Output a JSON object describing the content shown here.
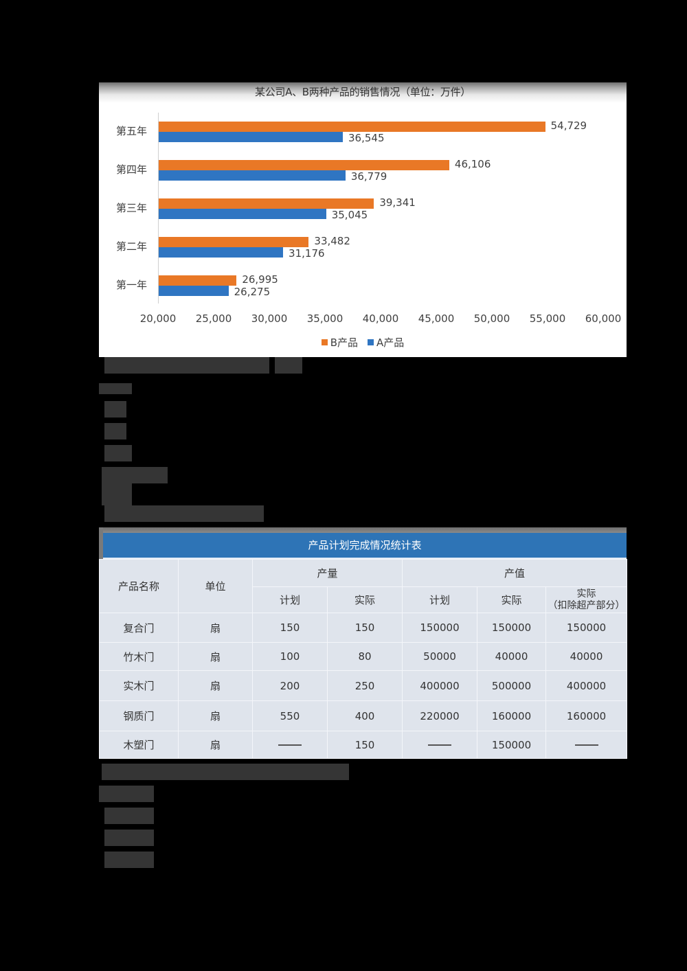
{
  "chart_data": {
    "type": "bar",
    "orientation": "horizontal",
    "title": "某公司A、B两种产品的销售情况（单位：万件）",
    "categories": [
      "第五年",
      "第四年",
      "第三年",
      "第二年",
      "第一年"
    ],
    "series": [
      {
        "name": "B产品",
        "color": "#e97826",
        "values": [
          54729,
          46106,
          39341,
          33482,
          26995
        ],
        "labels": [
          "54,729",
          "46,106",
          "39,341",
          "33,482",
          "26,995"
        ]
      },
      {
        "name": "A产品",
        "color": "#2f75c2",
        "values": [
          36545,
          36779,
          35045,
          31176,
          26275
        ],
        "labels": [
          "36,545",
          "36,779",
          "35,045",
          "31,176",
          "26,275"
        ]
      }
    ],
    "xlabel": "",
    "ylabel": "",
    "xlim": [
      20000,
      60000
    ],
    "x_ticks": [
      "20,000",
      "25,000",
      "30,000",
      "35,000",
      "40,000",
      "45,000",
      "50,000",
      "55,000",
      "60,000"
    ],
    "grid": false,
    "legend": [
      "B产品",
      "A产品"
    ],
    "legend_position": "bottom"
  },
  "table": {
    "caption": "产品计划完成情况统计表",
    "headers": {
      "name": "产品名称",
      "unit": "单位",
      "output": "产量",
      "value": "产值",
      "plan": "计划",
      "actual": "实际",
      "value_plan": "计划",
      "value_actual": "实际",
      "value_actual_adj_line1": "实际",
      "value_actual_adj_line2": "（扣除超产部分）"
    },
    "rows": [
      {
        "name": "复合门",
        "unit": "扇",
        "out_plan": "150",
        "out_actual": "150",
        "val_plan": "150000",
        "val_actual": "150000",
        "val_adj": "150000"
      },
      {
        "name": "竹木门",
        "unit": "扇",
        "out_plan": "100",
        "out_actual": "80",
        "val_plan": "50000",
        "val_actual": "40000",
        "val_adj": "40000"
      },
      {
        "name": "实木门",
        "unit": "扇",
        "out_plan": "200",
        "out_actual": "250",
        "val_plan": "400000",
        "val_actual": "500000",
        "val_adj": "400000"
      },
      {
        "name": "钢质门",
        "unit": "扇",
        "out_plan": "550",
        "out_actual": "400",
        "val_plan": "220000",
        "val_actual": "160000",
        "val_adj": "160000"
      },
      {
        "name": "木塑门",
        "unit": "扇",
        "out_plan": "——",
        "out_actual": "150",
        "val_plan": "——",
        "val_actual": "150000",
        "val_adj": "——"
      }
    ]
  }
}
